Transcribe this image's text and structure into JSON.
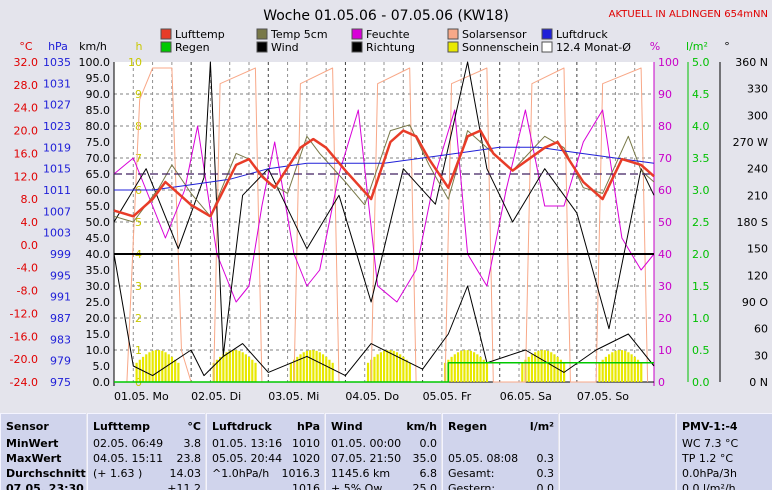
{
  "title": "Woche 01.05.06 - 07.05.06 (KW18)",
  "subtitle": "AKTUELL IN ALDINGEN 654mNN",
  "colors": {
    "lufttemp": "#e83c28",
    "temp5cm": "#787848",
    "feuchte": "#d800d8",
    "solarsensor": "#f8a888",
    "luftdruck": "#2020d8",
    "regen": "#00c800",
    "wind": "#000000",
    "richtung": "#000000",
    "sonnenschein": "#e8e800",
    "monat": "#ffffff",
    "plot_bg": "#ffffff",
    "page_bg": "#e4e4ec"
  },
  "legend": [
    {
      "key": "lufttemp",
      "label": "Lufttemp"
    },
    {
      "key": "temp5cm",
      "label": "Temp 5cm"
    },
    {
      "key": "feuchte",
      "label": "Feuchte"
    },
    {
      "key": "solarsensor",
      "label": "Solarsensor"
    },
    {
      "key": "luftdruck",
      "label": "Luftdruck"
    },
    {
      "key": "regen",
      "label": "Regen"
    },
    {
      "key": "wind",
      "label": "Wind"
    },
    {
      "key": "richtung",
      "label": "Richtung"
    },
    {
      "key": "sonnenschein",
      "label": "Sonnenschein"
    },
    {
      "key": "monat",
      "label": "12.4 Monat-Ø"
    }
  ],
  "axes": {
    "temp": {
      "unit": "°C",
      "ticks": [
        "32.0",
        "28.0",
        "24.0",
        "20.0",
        "16.0",
        "12.0",
        "8.0",
        "4.0",
        "0.0",
        "-4.0",
        "-8.0",
        "-12.0",
        "-16.0",
        "-20.0",
        "-24.0"
      ]
    },
    "pressure": {
      "unit": "hPa",
      "ticks": [
        "1035",
        "1031",
        "1027",
        "1023",
        "1019",
        "1015",
        "1011",
        "1007",
        "1003",
        "999",
        "995",
        "991",
        "987",
        "983",
        "979",
        "975"
      ]
    },
    "wind": {
      "unit": "km/h",
      "ticks": [
        "100.0",
        "95.0",
        "90.0",
        "85.0",
        "80.0",
        "75.0",
        "70.0",
        "65.0",
        "60.0",
        "55.0",
        "50.0",
        "45.0",
        "40.0",
        "35.0",
        "30.0",
        "25.0",
        "20.0",
        "15.0",
        "10.0",
        "5.0",
        "0.0"
      ]
    },
    "sun": {
      "unit": "h",
      "ticks": [
        "10",
        "9",
        "8",
        "7",
        "6",
        "5",
        "4",
        "3",
        "2",
        "1",
        "0"
      ]
    },
    "humidity": {
      "unit": "%",
      "ticks": [
        "100",
        "90",
        "80",
        "70",
        "60",
        "50",
        "40",
        "30",
        "20",
        "10",
        "0"
      ]
    },
    "rain": {
      "unit": "l/m²",
      "ticks": [
        "5.0",
        "4.5",
        "4.0",
        "3.5",
        "3.0",
        "2.5",
        "2.0",
        "1.5",
        "1.0",
        "0.5",
        "0.0"
      ]
    },
    "direction": {
      "unit": "°",
      "ticks": [
        "360 N",
        "330",
        "300",
        "270 W",
        "240",
        "210",
        "180 S",
        "150",
        "120",
        "90 O",
        "60",
        "30",
        "0 N"
      ]
    },
    "x": {
      "ticks": [
        "01.05. Mo",
        "02.05. Di",
        "03.05. Mi",
        "04.05. Do",
        "05.05. Fr",
        "06.05. Sa",
        "07.05. So"
      ]
    }
  },
  "chart_data": {
    "type": "line",
    "title": "Woche 01.05.06 - 07.05.06 (KW18)",
    "x_range": [
      "01.05.",
      "08.05."
    ],
    "x_unit": "hours since 01.05. 00:00",
    "grid": true,
    "legend_position": "top",
    "series": [
      {
        "name": "Lufttemp",
        "unit": "°C",
        "points": [
          [
            0,
            6
          ],
          [
            6,
            5
          ],
          [
            12,
            8
          ],
          [
            16,
            11
          ],
          [
            20,
            9
          ],
          [
            24,
            7
          ],
          [
            30,
            5
          ],
          [
            38,
            14
          ],
          [
            42,
            15
          ],
          [
            46,
            12
          ],
          [
            50,
            10
          ],
          [
            58,
            17
          ],
          [
            62,
            18.5
          ],
          [
            66,
            17
          ],
          [
            72,
            13
          ],
          [
            80,
            8
          ],
          [
            86,
            18
          ],
          [
            90,
            20
          ],
          [
            94,
            19
          ],
          [
            98,
            15
          ],
          [
            104,
            10
          ],
          [
            110,
            19
          ],
          [
            114,
            20
          ],
          [
            118,
            16
          ],
          [
            124,
            13
          ],
          [
            134,
            17
          ],
          [
            138,
            18
          ],
          [
            146,
            11
          ],
          [
            152,
            8
          ],
          [
            158,
            15
          ],
          [
            164,
            14
          ],
          [
            168,
            12
          ]
        ]
      },
      {
        "name": "Temp 5cm",
        "unit": "°C",
        "points": [
          [
            0,
            5
          ],
          [
            6,
            4
          ],
          [
            14,
            10
          ],
          [
            18,
            14
          ],
          [
            24,
            9
          ],
          [
            30,
            5
          ],
          [
            38,
            16
          ],
          [
            42,
            15
          ],
          [
            48,
            11
          ],
          [
            54,
            9
          ],
          [
            60,
            19
          ],
          [
            64,
            16
          ],
          [
            72,
            11
          ],
          [
            78,
            7
          ],
          [
            86,
            20
          ],
          [
            92,
            21
          ],
          [
            98,
            14
          ],
          [
            104,
            8
          ],
          [
            110,
            20
          ],
          [
            116,
            17
          ],
          [
            124,
            13
          ],
          [
            134,
            19
          ],
          [
            140,
            17
          ],
          [
            146,
            10
          ],
          [
            152,
            9
          ],
          [
            160,
            19
          ],
          [
            164,
            13
          ],
          [
            168,
            11
          ]
        ]
      },
      {
        "name": "Feuchte",
        "unit": "%",
        "points": [
          [
            0,
            65
          ],
          [
            6,
            70
          ],
          [
            12,
            55
          ],
          [
            16,
            45
          ],
          [
            22,
            60
          ],
          [
            26,
            80
          ],
          [
            32,
            40
          ],
          [
            38,
            25
          ],
          [
            42,
            30
          ],
          [
            46,
            55
          ],
          [
            50,
            75
          ],
          [
            56,
            40
          ],
          [
            60,
            30
          ],
          [
            64,
            35
          ],
          [
            70,
            65
          ],
          [
            76,
            85
          ],
          [
            82,
            30
          ],
          [
            88,
            25
          ],
          [
            94,
            35
          ],
          [
            100,
            65
          ],
          [
            106,
            85
          ],
          [
            110,
            40
          ],
          [
            116,
            30
          ],
          [
            122,
            60
          ],
          [
            128,
            85
          ],
          [
            134,
            55
          ],
          [
            140,
            55
          ],
          [
            146,
            75
          ],
          [
            152,
            85
          ],
          [
            158,
            45
          ],
          [
            164,
            35
          ],
          [
            168,
            40
          ]
        ]
      },
      {
        "name": "Solarsensor",
        "unit": "relative",
        "points": [
          [
            0,
            0
          ],
          [
            4,
            0
          ],
          [
            8,
            0.9
          ],
          [
            12,
            1
          ],
          [
            18,
            1
          ],
          [
            21,
            0.1
          ],
          [
            24,
            0
          ],
          [
            31,
            0
          ],
          [
            33,
            0.95
          ],
          [
            44,
            1
          ],
          [
            46,
            0
          ],
          [
            56,
            0
          ],
          [
            58,
            0.95
          ],
          [
            68,
            1
          ],
          [
            70,
            0
          ],
          [
            80,
            0
          ],
          [
            82,
            0.95
          ],
          [
            92,
            1
          ],
          [
            94,
            0
          ],
          [
            103,
            0
          ],
          [
            105,
            0.95
          ],
          [
            116,
            1
          ],
          [
            118,
            0
          ],
          [
            128,
            0
          ],
          [
            130,
            0.95
          ],
          [
            140,
            1
          ],
          [
            142,
            0
          ],
          [
            150,
            0
          ],
          [
            152,
            0.95
          ],
          [
            164,
            1
          ],
          [
            166,
            0
          ]
        ]
      },
      {
        "name": "Luftdruck",
        "unit": "hPa",
        "points": [
          [
            0,
            1011
          ],
          [
            12,
            1011
          ],
          [
            24,
            1012
          ],
          [
            36,
            1013
          ],
          [
            48,
            1015
          ],
          [
            60,
            1016
          ],
          [
            72,
            1016
          ],
          [
            84,
            1016
          ],
          [
            96,
            1017
          ],
          [
            108,
            1018
          ],
          [
            120,
            1019
          ],
          [
            132,
            1019
          ],
          [
            144,
            1018
          ],
          [
            156,
            1017
          ],
          [
            168,
            1016
          ]
        ]
      },
      {
        "name": "Regen",
        "unit": "l/m²",
        "points": [
          [
            0,
            0
          ],
          [
            104,
            0
          ],
          [
            104,
            0.3
          ],
          [
            168,
            0.3
          ]
        ]
      },
      {
        "name": "Wind",
        "unit": "km/h",
        "points": [
          [
            0,
            40
          ],
          [
            6,
            5
          ],
          [
            12,
            2
          ],
          [
            24,
            10
          ],
          [
            28,
            2
          ],
          [
            34,
            8
          ],
          [
            40,
            12
          ],
          [
            48,
            3
          ],
          [
            60,
            8
          ],
          [
            72,
            2
          ],
          [
            80,
            12
          ],
          [
            88,
            8
          ],
          [
            96,
            4
          ],
          [
            104,
            15
          ],
          [
            110,
            30
          ],
          [
            116,
            6
          ],
          [
            128,
            10
          ],
          [
            140,
            3
          ],
          [
            150,
            10
          ],
          [
            160,
            15
          ],
          [
            168,
            5
          ]
        ]
      },
      {
        "name": "Richtung",
        "unit": "°",
        "points": [
          [
            0,
            180
          ],
          [
            10,
            240
          ],
          [
            20,
            150
          ],
          [
            28,
            230
          ],
          [
            30,
            360
          ],
          [
            34,
            30
          ],
          [
            40,
            210
          ],
          [
            48,
            240
          ],
          [
            60,
            150
          ],
          [
            70,
            210
          ],
          [
            80,
            90
          ],
          [
            90,
            240
          ],
          [
            100,
            200
          ],
          [
            110,
            360
          ],
          [
            116,
            240
          ],
          [
            124,
            180
          ],
          [
            134,
            240
          ],
          [
            144,
            190
          ],
          [
            154,
            60
          ],
          [
            164,
            240
          ],
          [
            168,
            210
          ]
        ]
      },
      {
        "name": "Sonnenschein",
        "unit": "h",
        "daily_hours": [
          1.0,
          1.0,
          1.0,
          1.0,
          1.0,
          1.0,
          1.0
        ]
      },
      {
        "name": "12.4 Monat-Ø",
        "unit": "°C",
        "value": 12.4
      }
    ]
  },
  "table": [
    {
      "header": [
        "Sensor",
        ""
      ],
      "rows": [
        [
          "MinWert",
          ""
        ],
        [
          "MaxWert",
          ""
        ],
        [
          "Durchschnitt",
          ""
        ],
        [
          "07.05. 23:30",
          ""
        ]
      ]
    },
    {
      "header": [
        "Lufttemp",
        "°C"
      ],
      "rows": [
        [
          "02.05.   06:49",
          "3.8"
        ],
        [
          "04.05.   15:11",
          "23.8"
        ],
        [
          "(+ 1.63 )",
          "14.03"
        ],
        [
          "",
          "+11.2"
        ]
      ]
    },
    {
      "header": [
        "Luftdruck",
        "hPa"
      ],
      "rows": [
        [
          "01.05.   13:16",
          "1010"
        ],
        [
          "05.05.   20:44",
          "1020"
        ],
        [
          "^1.0hPa/h",
          "1016.3"
        ],
        [
          "",
          "1016"
        ]
      ]
    },
    {
      "header": [
        "Wind",
        "km/h"
      ],
      "rows": [
        [
          "01.05.   00:00",
          "0.0"
        ],
        [
          "07.05.   21:50",
          "35.0"
        ],
        [
          "1145.6 km",
          "6.8"
        ],
        [
          "+ 5% Ow",
          "25.0"
        ]
      ]
    },
    {
      "header": [
        "Regen",
        "l/m²"
      ],
      "rows": [
        [
          "",
          ""
        ],
        [
          "05.05.   08:08",
          "0.3"
        ],
        [
          "Gesamt:",
          "0.3"
        ],
        [
          "Gestern:",
          "0.0"
        ]
      ]
    },
    {
      "header": [
        "",
        ""
      ],
      "rows": [
        [
          "",
          ""
        ],
        [
          "",
          ""
        ],
        [
          "",
          ""
        ],
        [
          "",
          ""
        ]
      ]
    },
    {
      "header": [
        "PMV-1:-4",
        ""
      ],
      "rows": [
        [
          "WC 7.3 °C",
          ""
        ],
        [
          "TP 1.2 °C",
          ""
        ],
        [
          "0.0hPa/3h",
          ""
        ],
        [
          "0.0 l/m²/h",
          ""
        ]
      ]
    }
  ]
}
